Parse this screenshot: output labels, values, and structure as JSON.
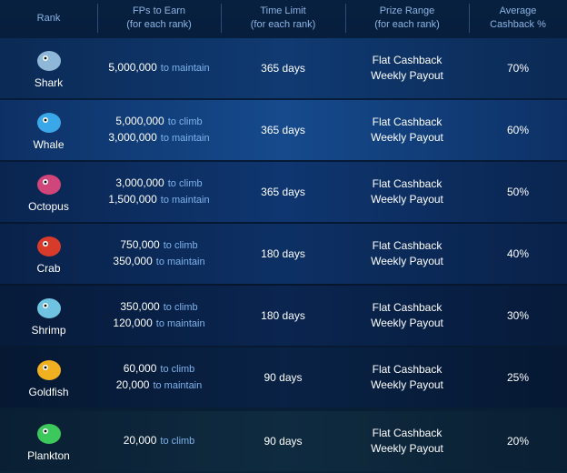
{
  "header": {
    "columns": [
      [
        "Rank"
      ],
      [
        "FPs to Earn",
        "(for each rank)"
      ],
      [
        "Time Limit",
        "(for each rank)"
      ],
      [
        "Prize Range",
        "(for each rank)"
      ],
      [
        "Average",
        "Cashback %"
      ]
    ]
  },
  "table": {
    "rows": [
      {
        "rank": "Shark",
        "fps": [
          {
            "amount": "5,000,000",
            "qualifier": "to maintain"
          }
        ],
        "time": "365 days",
        "prize": [
          "Flat Cashback",
          "Weekly Payout"
        ],
        "cashback": "70%"
      },
      {
        "rank": "Whale",
        "fps": [
          {
            "amount": "5,000,000",
            "qualifier": "to climb"
          },
          {
            "amount": "3,000,000",
            "qualifier": "to maintain"
          }
        ],
        "time": "365 days",
        "prize": [
          "Flat Cashback",
          "Weekly Payout"
        ],
        "cashback": "60%"
      },
      {
        "rank": "Octopus",
        "fps": [
          {
            "amount": "3,000,000",
            "qualifier": "to climb"
          },
          {
            "amount": "1,500,000",
            "qualifier": "to maintain"
          }
        ],
        "time": "365 days",
        "prize": [
          "Flat Cashback",
          "Weekly Payout"
        ],
        "cashback": "50%"
      },
      {
        "rank": "Crab",
        "fps": [
          {
            "amount": "750,000",
            "qualifier": "to climb"
          },
          {
            "amount": "350,000",
            "qualifier": "to maintain"
          }
        ],
        "time": "180 days",
        "prize": [
          "Flat Cashback",
          "Weekly Payout"
        ],
        "cashback": "40%"
      },
      {
        "rank": "Shrimp",
        "fps": [
          {
            "amount": "350,000",
            "qualifier": "to climb"
          },
          {
            "amount": "120,000",
            "qualifier": "to maintain"
          }
        ],
        "time": "180 days",
        "prize": [
          "Flat Cashback",
          "Weekly Payout"
        ],
        "cashback": "30%"
      },
      {
        "rank": "Goldfish",
        "fps": [
          {
            "amount": "60,000",
            "qualifier": "to climb"
          },
          {
            "amount": "20,000",
            "qualifier": "to maintain"
          }
        ],
        "time": "90 days",
        "prize": [
          "Flat Cashback",
          "Weekly Payout"
        ],
        "cashback": "25%"
      },
      {
        "rank": "Plankton",
        "fps": [
          {
            "amount": "20,000",
            "qualifier": "to climb"
          }
        ],
        "time": "90 days",
        "prize": [
          "Flat Cashback",
          "Weekly Payout"
        ],
        "cashback": "20%"
      }
    ]
  }
}
